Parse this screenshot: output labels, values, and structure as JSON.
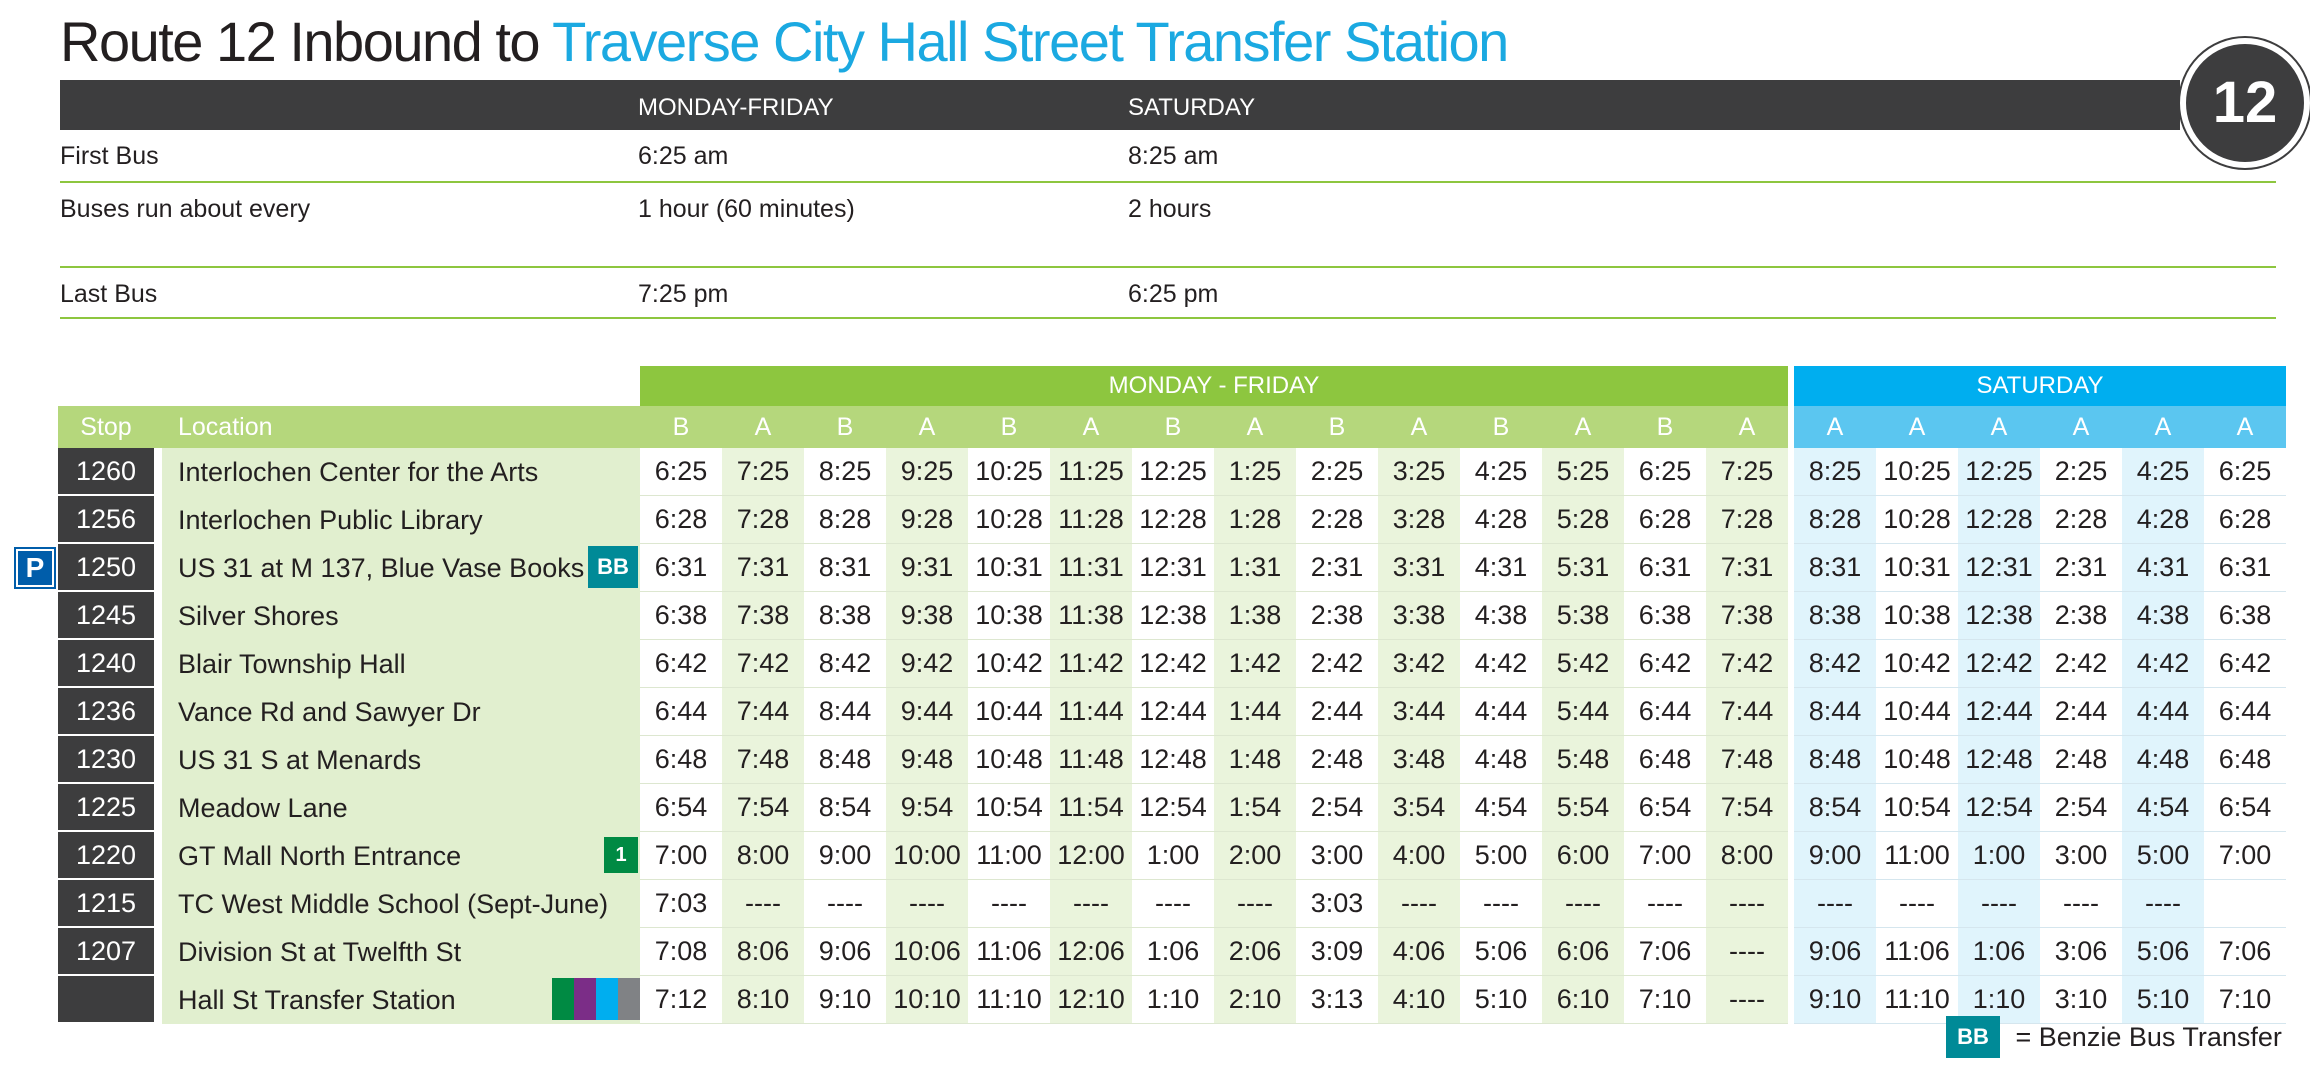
{
  "title": {
    "main": "Route 12 Inbound to",
    "destination": "Traverse City Hall Street Transfer Station"
  },
  "route_badge": "12",
  "summary": {
    "header": {
      "col1": "MONDAY-FRIDAY",
      "col2": "SATURDAY"
    },
    "rows": [
      {
        "label": "First Bus",
        "weekday": "6:25 am",
        "saturday": "8:25 am"
      },
      {
        "label": "Buses run about every",
        "weekday": "1 hour (60 minutes)",
        "saturday": "2 hours"
      },
      {
        "label": "Last Bus",
        "weekday": "7:25 pm",
        "saturday": "6:25 pm"
      }
    ]
  },
  "schedule": {
    "weekday_label": "MONDAY - FRIDAY",
    "saturday_label": "SATURDAY",
    "stop_header": "Stop",
    "location_header": "Location",
    "weekday_trips": [
      "B",
      "A",
      "B",
      "A",
      "B",
      "A",
      "B",
      "A",
      "B",
      "A",
      "B",
      "A",
      "B",
      "A"
    ],
    "saturday_trips": [
      "A",
      "A",
      "A",
      "A",
      "A",
      "A"
    ],
    "stops": [
      {
        "stop": "1260",
        "location": "Interlochen Center for the Arts",
        "weekday": [
          "6:25",
          "7:25",
          "8:25",
          "9:25",
          "10:25",
          "11:25",
          "12:25",
          "1:25",
          "2:25",
          "3:25",
          "4:25",
          "5:25",
          "6:25",
          "7:25"
        ],
        "saturday": [
          "8:25",
          "10:25",
          "12:25",
          "2:25",
          "4:25",
          "6:25"
        ]
      },
      {
        "stop": "1256",
        "location": "Interlochen Public Library",
        "weekday": [
          "6:28",
          "7:28",
          "8:28",
          "9:28",
          "10:28",
          "11:28",
          "12:28",
          "1:28",
          "2:28",
          "3:28",
          "4:28",
          "5:28",
          "6:28",
          "7:28"
        ],
        "saturday": [
          "8:28",
          "10:28",
          "12:28",
          "2:28",
          "4:28",
          "6:28"
        ]
      },
      {
        "stop": "1250",
        "location": "US 31 at M 137, Blue Vase Books",
        "badge": "BB",
        "park": "P",
        "weekday": [
          "6:31",
          "7:31",
          "8:31",
          "9:31",
          "10:31",
          "11:31",
          "12:31",
          "1:31",
          "2:31",
          "3:31",
          "4:31",
          "5:31",
          "6:31",
          "7:31"
        ],
        "saturday": [
          "8:31",
          "10:31",
          "12:31",
          "2:31",
          "4:31",
          "6:31"
        ]
      },
      {
        "stop": "1245",
        "location": "Silver Shores",
        "weekday": [
          "6:38",
          "7:38",
          "8:38",
          "9:38",
          "10:38",
          "11:38",
          "12:38",
          "1:38",
          "2:38",
          "3:38",
          "4:38",
          "5:38",
          "6:38",
          "7:38"
        ],
        "saturday": [
          "8:38",
          "10:38",
          "12:38",
          "2:38",
          "4:38",
          "6:38"
        ]
      },
      {
        "stop": "1240",
        "location": "Blair Township Hall",
        "weekday": [
          "6:42",
          "7:42",
          "8:42",
          "9:42",
          "10:42",
          "11:42",
          "12:42",
          "1:42",
          "2:42",
          "3:42",
          "4:42",
          "5:42",
          "6:42",
          "7:42"
        ],
        "saturday": [
          "8:42",
          "10:42",
          "12:42",
          "2:42",
          "4:42",
          "6:42"
        ]
      },
      {
        "stop": "1236",
        "location": "Vance Rd and Sawyer Dr",
        "weekday": [
          "6:44",
          "7:44",
          "8:44",
          "9:44",
          "10:44",
          "11:44",
          "12:44",
          "1:44",
          "2:44",
          "3:44",
          "4:44",
          "5:44",
          "6:44",
          "7:44"
        ],
        "saturday": [
          "8:44",
          "10:44",
          "12:44",
          "2:44",
          "4:44",
          "6:44"
        ]
      },
      {
        "stop": "1230",
        "location": "US 31 S at Menards",
        "weekday": [
          "6:48",
          "7:48",
          "8:48",
          "9:48",
          "10:48",
          "11:48",
          "12:48",
          "1:48",
          "2:48",
          "3:48",
          "4:48",
          "5:48",
          "6:48",
          "7:48"
        ],
        "saturday": [
          "8:48",
          "10:48",
          "12:48",
          "2:48",
          "4:48",
          "6:48"
        ]
      },
      {
        "stop": "1225",
        "location": "Meadow Lane",
        "weekday": [
          "6:54",
          "7:54",
          "8:54",
          "9:54",
          "10:54",
          "11:54",
          "12:54",
          "1:54",
          "2:54",
          "3:54",
          "4:54",
          "5:54",
          "6:54",
          "7:54"
        ],
        "saturday": [
          "8:54",
          "10:54",
          "12:54",
          "2:54",
          "4:54",
          "6:54"
        ]
      },
      {
        "stop": "1220",
        "location": "GT Mall North Entrance",
        "badge": "1",
        "weekday": [
          "7:00",
          "8:00",
          "9:00",
          "10:00",
          "11:00",
          "12:00",
          "1:00",
          "2:00",
          "3:00",
          "4:00",
          "5:00",
          "6:00",
          "7:00",
          "8:00"
        ],
        "saturday": [
          "9:00",
          "11:00",
          "1:00",
          "3:00",
          "5:00",
          "7:00"
        ]
      },
      {
        "stop": "1215",
        "location": "TC West Middle School (Sept-June)",
        "weekday": [
          "7:03",
          "----",
          "----",
          "----",
          "----",
          "----",
          "----",
          "----",
          "3:03",
          "----",
          "----",
          "----",
          "----",
          "----"
        ],
        "saturday": [
          "----",
          "----",
          "----",
          "----",
          "----",
          ""
        ]
      },
      {
        "stop": "1207",
        "location": "Division St at  Twelfth St",
        "weekday": [
          "7:08",
          "8:06",
          "9:06",
          "10:06",
          "11:06",
          "12:06",
          "1:06",
          "2:06",
          "3:09",
          "4:06",
          "5:06",
          "6:06",
          "7:06",
          "----"
        ],
        "saturday": [
          "9:06",
          "11:06",
          "1:06",
          "3:06",
          "5:06",
          "7:06"
        ]
      },
      {
        "stop": "",
        "location": "Hall St Transfer Station",
        "transfer_colors": [
          "#008a43",
          "#7b2d87",
          "#00aeef",
          "#808285"
        ],
        "weekday": [
          "7:12",
          "8:10",
          "9:10",
          "10:10",
          "11:10",
          "12:10",
          "1:10",
          "2:10",
          "3:13",
          "4:10",
          "5:10",
          "6:10",
          "7:10",
          "----"
        ],
        "saturday": [
          "9:10",
          "11:10",
          "1:10",
          "3:10",
          "5:10",
          "7:10"
        ]
      }
    ]
  },
  "legend": {
    "badge": "BB",
    "text": "= Benzie Bus Transfer"
  },
  "colors": {
    "dark": "#3d3d3e",
    "green": "#8dc63f",
    "blue": "#00aeef",
    "accent": "#1ba9e1",
    "teal": "#008a97",
    "park": "#005daa"
  }
}
